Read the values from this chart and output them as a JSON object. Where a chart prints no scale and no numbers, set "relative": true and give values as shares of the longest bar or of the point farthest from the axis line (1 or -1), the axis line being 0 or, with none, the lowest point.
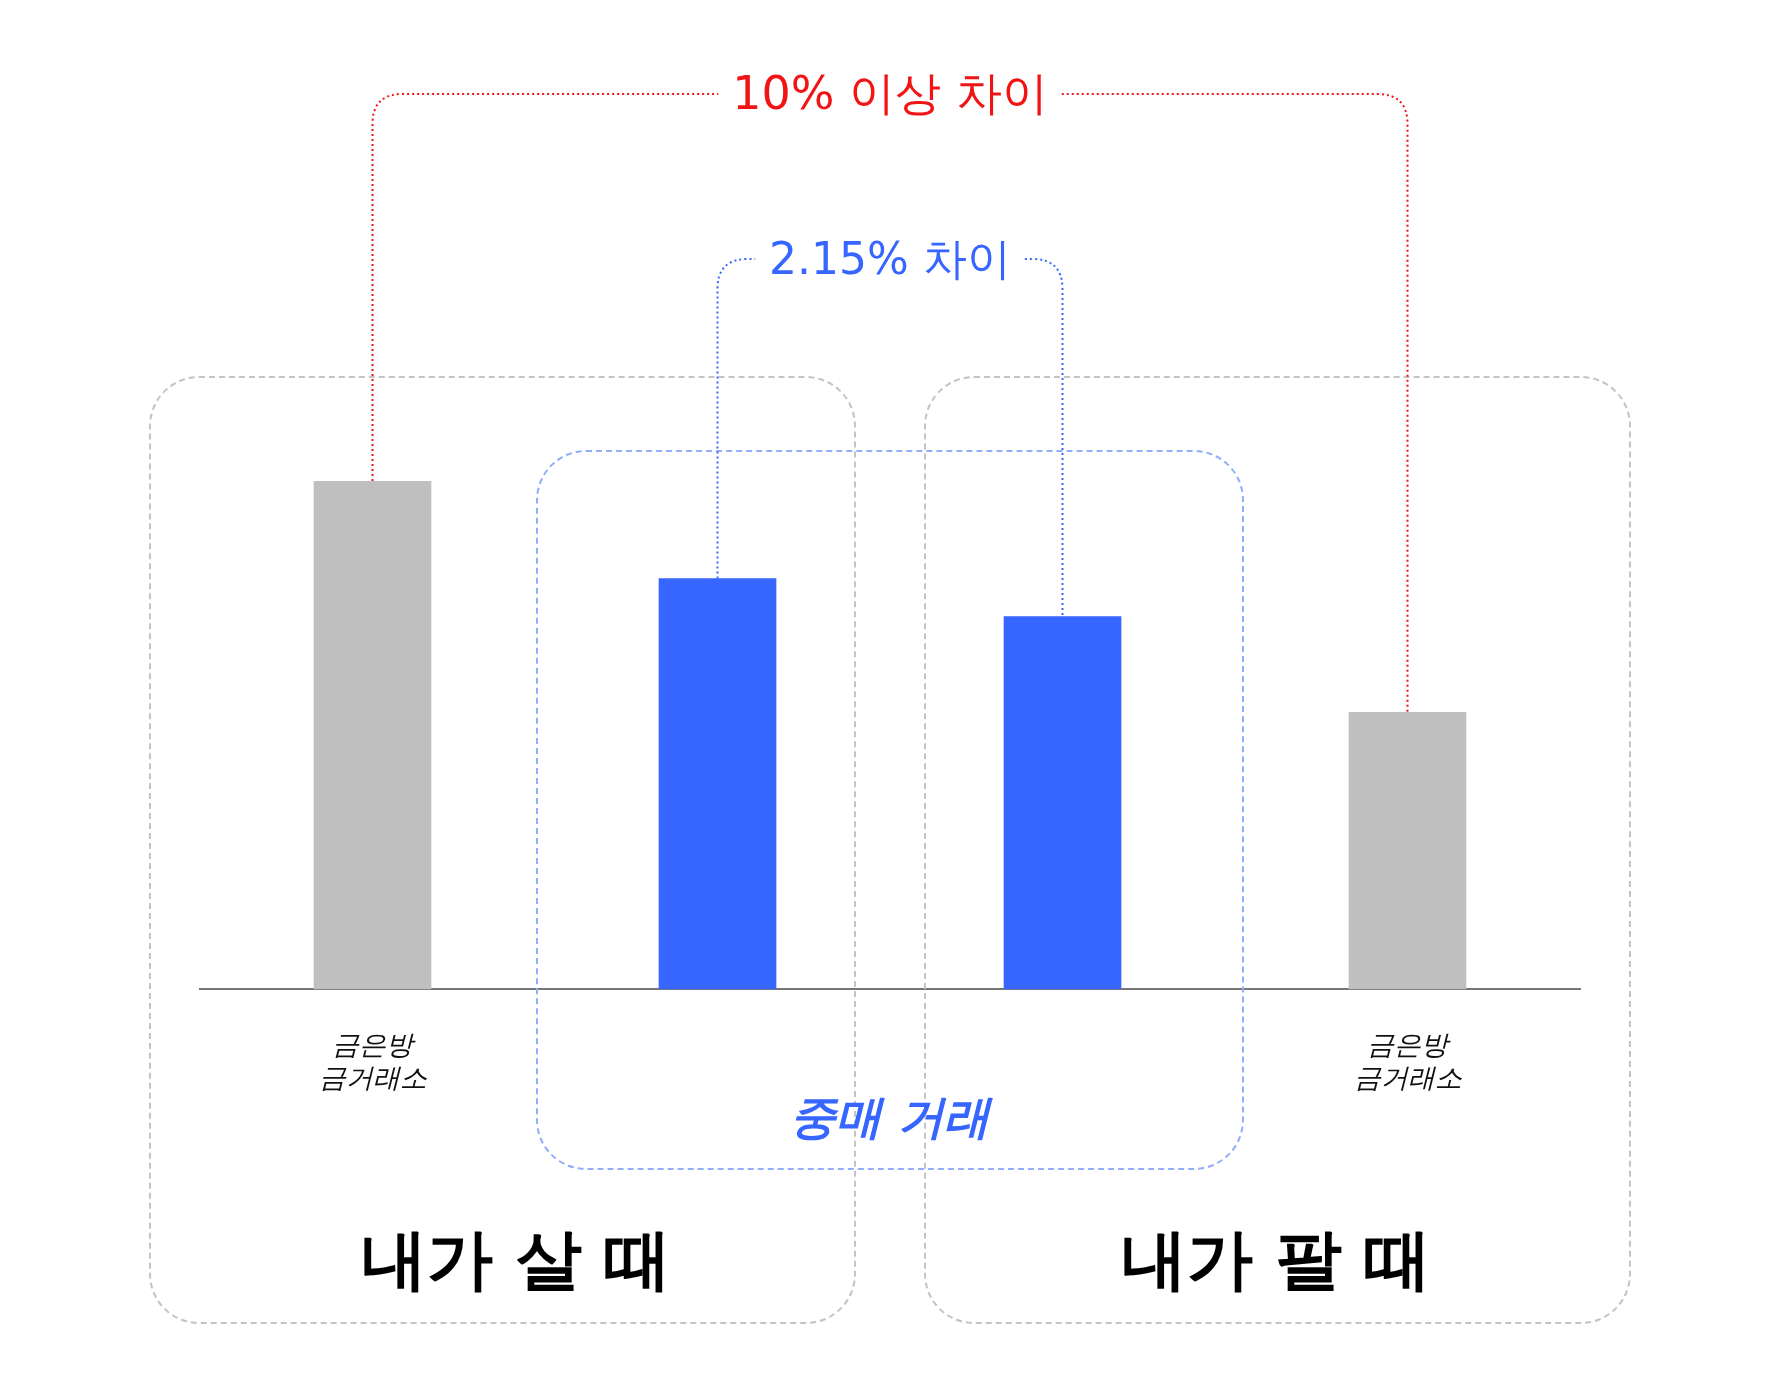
{
  "chart_data": {
    "type": "bar",
    "categories": [
      "금은방\n금거래소",
      null,
      null,
      "금은방\n금거래소"
    ],
    "values": [
      1,
      0.808,
      0.733,
      0.545
    ],
    "colors": [
      "#bfbfbf",
      "#3666ff",
      "#3666ff",
      "#bfbfbf"
    ],
    "relative": true,
    "annotations": [
      "10% 이상 차이",
      "2.15% 차이",
      "중매 거래",
      "내가 살 때",
      "내가 팔 때"
    ]
  }
}
